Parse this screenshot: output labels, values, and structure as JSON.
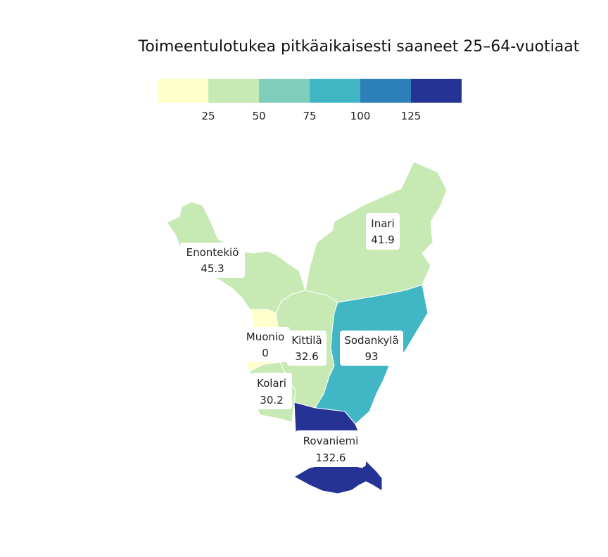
{
  "title": "Toimeentulotukea pitkäaikaisesti saaneet 25–64-vuotiaat",
  "legend": {
    "colors": [
      "#ffffcc",
      "#c7e9b4",
      "#7fcdbb",
      "#41b6c4",
      "#2c7fb8",
      "#253494"
    ],
    "ticks": [
      "25",
      "50",
      "75",
      "100",
      "125"
    ]
  },
  "regions": [
    {
      "name": "Enontekiö",
      "value": "45.3",
      "color": "#c7e9b4"
    },
    {
      "name": "Inari",
      "value": "41.9",
      "color": "#c7e9b4"
    },
    {
      "name": "Muonio",
      "value": "0",
      "color": "#ffffcc"
    },
    {
      "name": "Kittilä",
      "value": "32.6",
      "color": "#c7e9b4"
    },
    {
      "name": "Sodankylä",
      "value": "93",
      "color": "#41b6c4"
    },
    {
      "name": "Kolari",
      "value": "30.2",
      "color": "#c7e9b4"
    },
    {
      "name": "Rovaniemi",
      "value": "132.6",
      "color": "#253494"
    }
  ]
}
